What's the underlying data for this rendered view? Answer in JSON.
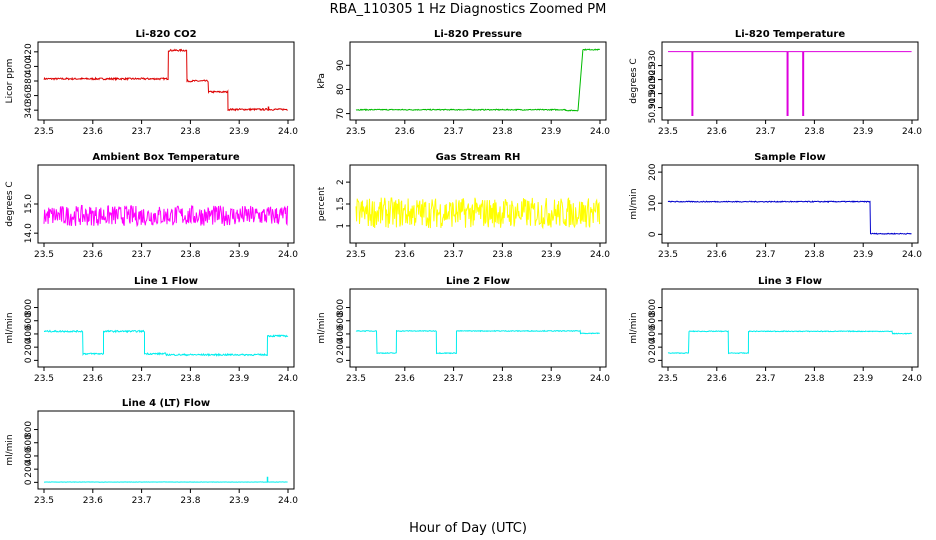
{
  "title": "RBA_110305  1 Hz Diagnostics Zoomed PM",
  "xlabel": "Hour of Day (UTC)",
  "chart_data": [
    {
      "type": "line",
      "title": "Li-820 CO2",
      "ylabel": "Licor ppm",
      "color": "#dd0000",
      "xlim": [
        23.5,
        24.0
      ],
      "ylim": [
        332,
        428
      ],
      "yticks": [
        340,
        360,
        380,
        400,
        420
      ],
      "xticks": [
        23.5,
        23.6,
        23.7,
        23.8,
        23.9,
        24.0
      ],
      "segments": [
        {
          "x0": 23.5,
          "x1": 23.755,
          "y": 383
        },
        {
          "x0": 23.755,
          "x1": 23.793,
          "y": 422
        },
        {
          "x0": 23.793,
          "x1": 23.837,
          "y": 380
        },
        {
          "x0": 23.837,
          "x1": 23.877,
          "y": 365
        },
        {
          "x0": 23.877,
          "x1": 24.0,
          "y": 341
        }
      ],
      "noise": 1.2,
      "spikes": [
        {
          "x": 23.96,
          "y": 345
        }
      ]
    },
    {
      "type": "line",
      "title": "Li-820 Pressure",
      "ylabel": "kPa",
      "color": "#00bb00",
      "xlim": [
        23.5,
        24.0
      ],
      "ylim": [
        69,
        98
      ],
      "yticks": [
        70,
        80,
        90
      ],
      "xticks": [
        23.5,
        23.6,
        23.7,
        23.8,
        23.9,
        24.0
      ],
      "segments": [
        {
          "x0": 23.5,
          "x1": 23.93,
          "y": 71.6
        },
        {
          "x0": 23.93,
          "x1": 23.955,
          "y": 71.3
        }
      ],
      "ramp": {
        "x0": 23.955,
        "x1": 23.965,
        "y0": 71.3,
        "y1": 96.5
      },
      "tail": {
        "x0": 23.965,
        "x1": 24.0,
        "y": 96.5
      },
      "noise": 0.2
    },
    {
      "type": "line",
      "title": "Li-820 Temperature",
      "ylabel": "degrees C",
      "color": "#dd00dd",
      "xlim": [
        23.5,
        24.0
      ],
      "ylim": [
        50.912,
        50.937
      ],
      "yticks": [
        50.915,
        50.92,
        50.925,
        50.93
      ],
      "xticks": [
        23.5,
        23.6,
        23.7,
        23.8,
        23.9,
        24.0
      ],
      "segments": [
        {
          "x0": 23.5,
          "x1": 24.0,
          "y": 50.935
        }
      ],
      "drops": [
        23.55,
        23.745,
        23.777
      ],
      "noise": 0
    },
    {
      "type": "line",
      "title": "Ambient Box Temperature",
      "ylabel": "degrees C",
      "color": "#ff00ff",
      "xlim": [
        23.5,
        24.0
      ],
      "ylim": [
        13.8,
        16.2
      ],
      "yticks": [
        14.0,
        15.0
      ],
      "xticks": [
        23.5,
        23.6,
        23.7,
        23.8,
        23.9,
        24.0
      ],
      "segments": [
        {
          "x0": 23.5,
          "x1": 24.0,
          "y": 14.6
        }
      ],
      "noise": 0.35
    },
    {
      "type": "line",
      "title": "Gas Stream RH",
      "ylabel": "percent",
      "color": "#ffff00",
      "xlim": [
        23.5,
        24.0
      ],
      "ylim": [
        0.7,
        2.3
      ],
      "yticks": [
        1.0,
        1.5,
        2.0
      ],
      "xticks": [
        23.5,
        23.6,
        23.7,
        23.8,
        23.9,
        24.0
      ],
      "segments": [
        {
          "x0": 23.5,
          "x1": 24.0,
          "y": 1.3
        }
      ],
      "noise": 0.35
    },
    {
      "type": "line",
      "title": "Sample Flow",
      "ylabel": "ml/min",
      "color": "#0000cc",
      "xlim": [
        23.5,
        24.0
      ],
      "ylim": [
        -15,
        210
      ],
      "yticks": [
        0,
        100,
        200
      ],
      "xticks": [
        23.5,
        23.6,
        23.7,
        23.8,
        23.9,
        24.0
      ],
      "segments": [
        {
          "x0": 23.5,
          "x1": 23.915,
          "y": 105
        },
        {
          "x0": 23.915,
          "x1": 24.0,
          "y": 2
        }
      ],
      "noise": 1.5
    },
    {
      "type": "line",
      "title": "Line 1 Flow",
      "ylabel": "ml/min",
      "color": "#00eeee",
      "xlim": [
        23.5,
        24.0
      ],
      "ylim": [
        -40,
        1020
      ],
      "yticks": [
        0,
        200,
        400,
        600,
        800
      ],
      "xticks": [
        23.5,
        23.6,
        23.7,
        23.8,
        23.9,
        24.0
      ],
      "segments": [
        {
          "x0": 23.5,
          "x1": 23.58,
          "y": 440
        },
        {
          "x0": 23.58,
          "x1": 23.622,
          "y": 100
        },
        {
          "x0": 23.622,
          "x1": 23.706,
          "y": 440
        },
        {
          "x0": 23.706,
          "x1": 23.75,
          "y": 100
        },
        {
          "x0": 23.75,
          "x1": 23.958,
          "y": 85
        },
        {
          "x0": 23.958,
          "x1": 24.0,
          "y": 370
        }
      ],
      "noise": 12
    },
    {
      "type": "line",
      "title": "Line 2 Flow",
      "ylabel": "ml/min",
      "color": "#00eeee",
      "xlim": [
        23.5,
        24.0
      ],
      "ylim": [
        -40,
        1020
      ],
      "yticks": [
        0,
        200,
        400,
        600,
        800
      ],
      "xticks": [
        23.5,
        23.6,
        23.7,
        23.8,
        23.9,
        24.0
      ],
      "segments": [
        {
          "x0": 23.5,
          "x1": 23.543,
          "y": 445
        },
        {
          "x0": 23.543,
          "x1": 23.583,
          "y": 110
        },
        {
          "x0": 23.583,
          "x1": 23.665,
          "y": 445
        },
        {
          "x0": 23.665,
          "x1": 23.706,
          "y": 110
        },
        {
          "x0": 23.706,
          "x1": 23.96,
          "y": 445
        },
        {
          "x0": 23.96,
          "x1": 24.0,
          "y": 410
        }
      ],
      "noise": 6
    },
    {
      "type": "line",
      "title": "Line 3 Flow",
      "ylabel": "ml/min",
      "color": "#00eeee",
      "xlim": [
        23.5,
        24.0
      ],
      "ylim": [
        -40,
        1020
      ],
      "yticks": [
        0,
        200,
        400,
        600,
        800
      ],
      "xticks": [
        23.5,
        23.6,
        23.7,
        23.8,
        23.9,
        24.0
      ],
      "segments": [
        {
          "x0": 23.5,
          "x1": 23.543,
          "y": 110
        },
        {
          "x0": 23.543,
          "x1": 23.624,
          "y": 440
        },
        {
          "x0": 23.624,
          "x1": 23.665,
          "y": 110
        },
        {
          "x0": 23.665,
          "x1": 23.96,
          "y": 440
        },
        {
          "x0": 23.96,
          "x1": 24.0,
          "y": 405
        }
      ],
      "noise": 6
    },
    {
      "type": "line",
      "title": "Line 4 (LT) Flow",
      "ylabel": "ml/min",
      "color": "#00eeee",
      "xlim": [
        23.5,
        24.0
      ],
      "ylim": [
        -40,
        1020
      ],
      "yticks": [
        0,
        200,
        400,
        600,
        800
      ],
      "xticks": [
        23.5,
        23.6,
        23.7,
        23.8,
        23.9,
        24.0
      ],
      "segments": [
        {
          "x0": 23.5,
          "x1": 24.0,
          "y": 5
        }
      ],
      "spikes": [
        {
          "x": 23.958,
          "y": 85
        }
      ],
      "noise": 2
    }
  ]
}
